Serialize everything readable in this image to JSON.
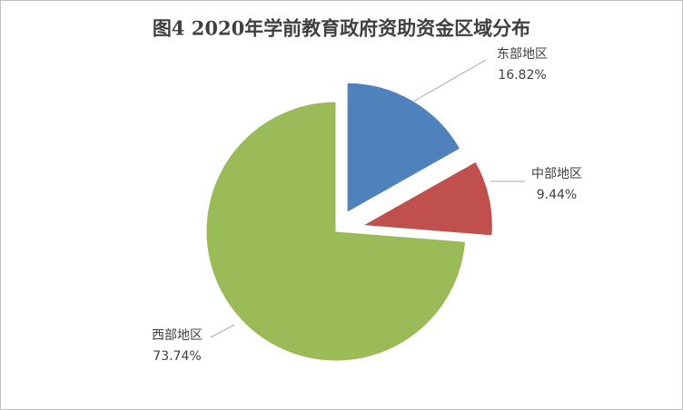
{
  "chart_data": {
    "type": "pie",
    "title": "图4  2020年学前教育政府资助资金区域分布",
    "categories": [
      "东部地区",
      "中部地区",
      "西部地区"
    ],
    "values": [
      16.82,
      9.44,
      73.74
    ],
    "value_labels": [
      "16.82%",
      "9.44%",
      "73.74%"
    ],
    "colors": [
      "#4f81bd",
      "#c0504d",
      "#9bbb59"
    ]
  }
}
